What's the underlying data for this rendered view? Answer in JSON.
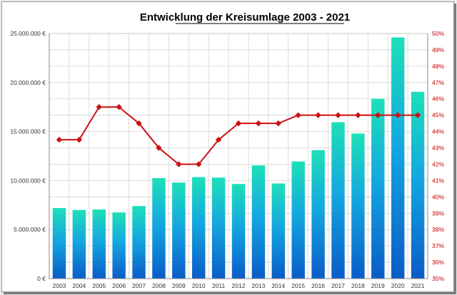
{
  "chart_data": {
    "type": "bar",
    "title": "Entwicklung der Kreisumlage 2003 - 2021",
    "categories": [
      "2003",
      "2004",
      "2005",
      "2006",
      "2007",
      "2008",
      "2009",
      "2010",
      "2011",
      "2012",
      "2013",
      "2014",
      "2015",
      "2016",
      "2017",
      "2018",
      "2019",
      "2020",
      "2021"
    ],
    "series": [
      {
        "type": "bar",
        "axis": "left",
        "values": [
          7200000,
          7000000,
          7050000,
          6750000,
          7400000,
          10250000,
          9800000,
          10350000,
          10300000,
          9650000,
          11550000,
          9700000,
          11950000,
          13100000,
          15950000,
          14800000,
          18350000,
          24600000,
          19050000
        ],
        "color_top": "#1de0b8",
        "color_bottom": "#0a5cc8"
      },
      {
        "type": "line",
        "axis": "right",
        "values": [
          43.5,
          43.5,
          45.5,
          45.5,
          44.5,
          43.0,
          42.0,
          42.0,
          43.5,
          44.5,
          44.5,
          44.5,
          45.0,
          45.0,
          45.0,
          45.0,
          45.0,
          45.0,
          45.0
        ],
        "color": "#cc1111"
      }
    ],
    "y_left": {
      "min": 0,
      "max": 25000000,
      "ticks": [
        "0 €",
        "5.000.000 €",
        "10.000.000 €",
        "15.000.000 €",
        "20.000.000 €",
        "25.000.000 €"
      ]
    },
    "y_right": {
      "min": 35,
      "max": 50,
      "ticks": [
        "35%",
        "36%",
        "37%",
        "38%",
        "39%",
        "40%",
        "41%",
        "42%",
        "43%",
        "44%",
        "45%",
        "46%",
        "47%",
        "48%",
        "49%",
        "50%"
      ],
      "color": "#c00000"
    },
    "grid": true,
    "legend": "none"
  }
}
